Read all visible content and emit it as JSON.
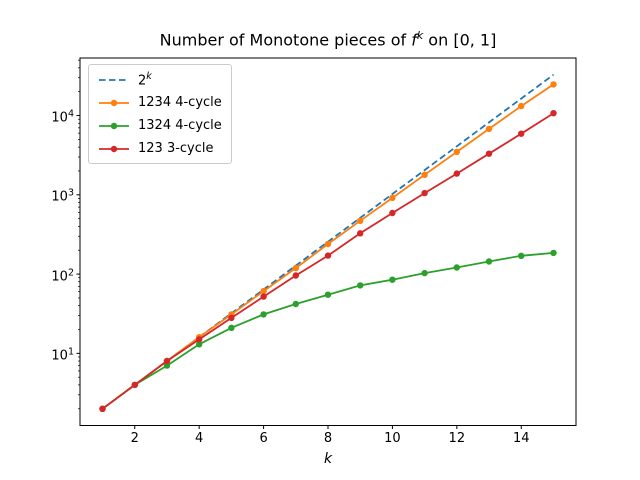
{
  "title": {
    "prefix": "Number of Monotone pieces of ",
    "f_var": "f",
    "f_exp": "k",
    "suffix": " on [0, 1]"
  },
  "xlabel": "k",
  "legend": {
    "items": [
      {
        "label": "2^k",
        "label_base": "2",
        "label_sup": "k",
        "color": "#1f77b4",
        "dashed": true,
        "marker": false
      },
      {
        "label": "1234 4-cycle",
        "color": "#ff7f0e",
        "dashed": false,
        "marker": true
      },
      {
        "label": "1324 4-cycle",
        "color": "#2ca02c",
        "dashed": false,
        "marker": true
      },
      {
        "label": "123 3-cycle",
        "color": "#d62728",
        "dashed": false,
        "marker": true
      }
    ],
    "position": "upper left"
  },
  "chart_data": {
    "type": "line",
    "title": "Number of Monotone pieces of f^k on [0, 1]",
    "xlabel": "k",
    "ylabel": "",
    "yscale": "log",
    "grid": false,
    "x": [
      1,
      2,
      3,
      4,
      5,
      6,
      7,
      8,
      9,
      10,
      11,
      12,
      13,
      14,
      15
    ],
    "series": [
      {
        "name": "2^k",
        "color": "#1f77b4",
        "style": "dashed",
        "marker": false,
        "values": [
          2,
          4,
          8,
          16,
          32,
          64,
          128,
          256,
          512,
          1024,
          2048,
          4096,
          8192,
          16384,
          32768
        ]
      },
      {
        "name": "1234 4-cycle",
        "color": "#ff7f0e",
        "style": "solid",
        "marker": true,
        "values": [
          2,
          4,
          8,
          16,
          31,
          61,
          119,
          240,
          470,
          915,
          1790,
          3480,
          6780,
          13150,
          24700
        ]
      },
      {
        "name": "1324 4-cycle",
        "color": "#2ca02c",
        "style": "solid",
        "marker": true,
        "values": [
          2,
          4,
          7,
          13,
          21,
          31,
          42,
          55,
          72,
          85,
          103,
          121,
          144,
          170,
          185
        ]
      },
      {
        "name": "123 3-cycle",
        "color": "#d62728",
        "style": "solid",
        "marker": true,
        "values": [
          2,
          4,
          8,
          15,
          28,
          52,
          96,
          171,
          327,
          590,
          1050,
          1850,
          3300,
          5900,
          10700
        ]
      }
    ],
    "x_ticks": [
      2,
      4,
      6,
      8,
      10,
      12,
      14
    ],
    "y_ticks_exponents": [
      1,
      2,
      3,
      4
    ],
    "xlim": [
      0.3,
      15.7
    ],
    "ylim_log10": [
      0.09,
      4.726
    ],
    "legend_position": "upper left"
  }
}
